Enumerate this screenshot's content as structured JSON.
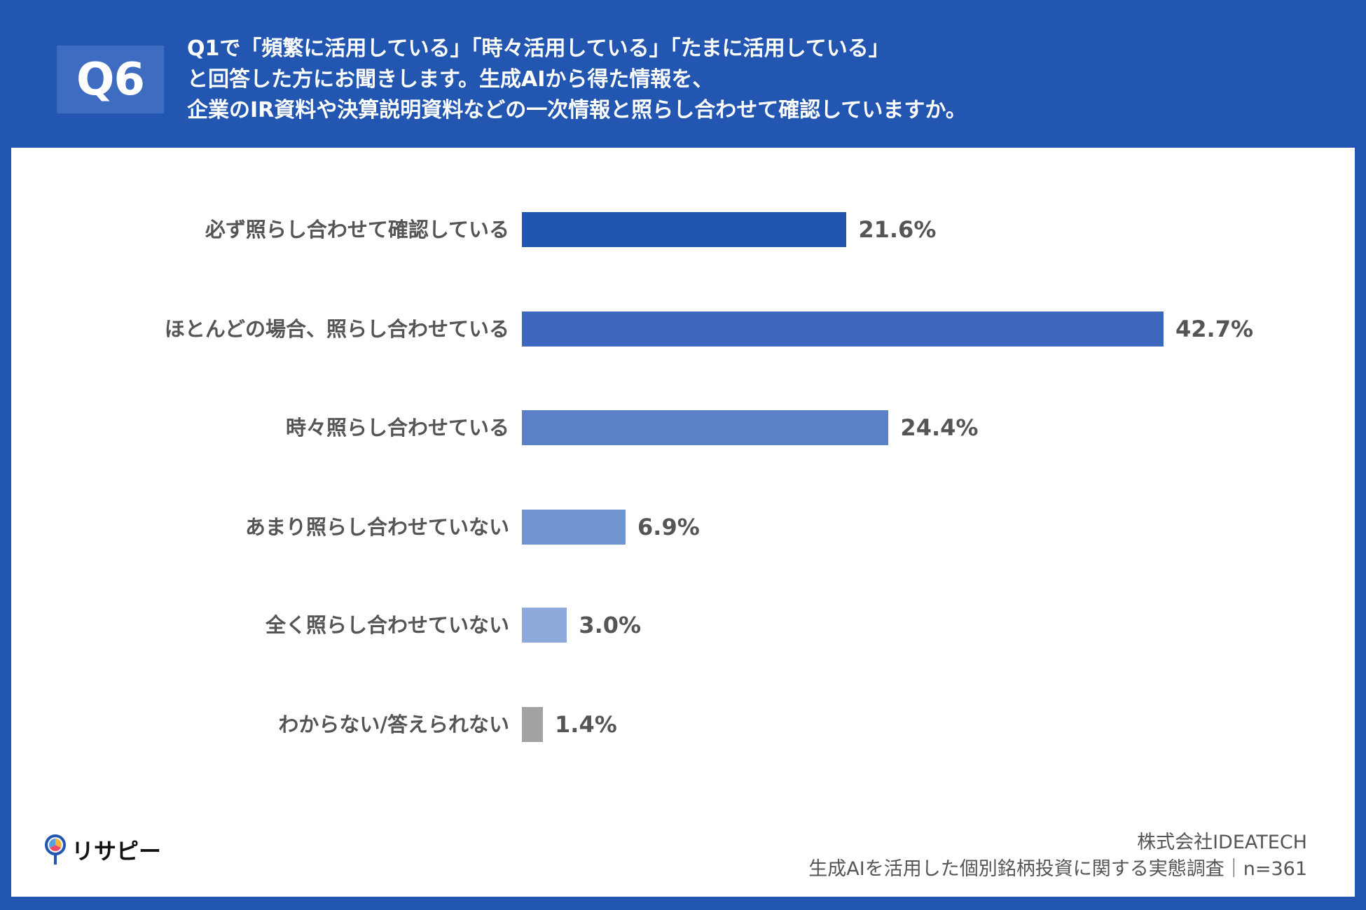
{
  "header": {
    "badge": "Q6",
    "question_lines": [
      "Q1で「頻繁に活用している」「時々活用している」「たまに活用している」",
      "と回答した方にお聞きします。生成AIから得た情報を、",
      "企業のIR資料や決算説明資料などの一次情報と照らし合わせて確認していますか。"
    ]
  },
  "chart_data": {
    "type": "bar",
    "orientation": "horizontal",
    "categories": [
      "必ず照らし合わせて確認している",
      "ほとんどの場合、照らし合わせている",
      "時々照らし合わせている",
      "あまり照らし合わせていない",
      "全く照らし合わせていない",
      "わからない/答えられない"
    ],
    "values": [
      21.6,
      42.7,
      24.4,
      6.9,
      3.0,
      1.4
    ],
    "value_labels": [
      "21.6%",
      "42.7%",
      "24.4%",
      "6.9%",
      "3.0%",
      "1.4%"
    ],
    "colors": [
      "#2155b0",
      "#3d68bd",
      "#5a80c6",
      "#7095d1",
      "#8eaadd",
      "#a3a3a3"
    ],
    "unit": "%",
    "xlim": [
      0,
      42.7
    ],
    "grid": false
  },
  "footer": {
    "logo_text": "リサピー",
    "company": "株式会社IDEATECH",
    "survey": "生成AIを活用した個別銘柄投資に関する実態調査｜n=361"
  }
}
